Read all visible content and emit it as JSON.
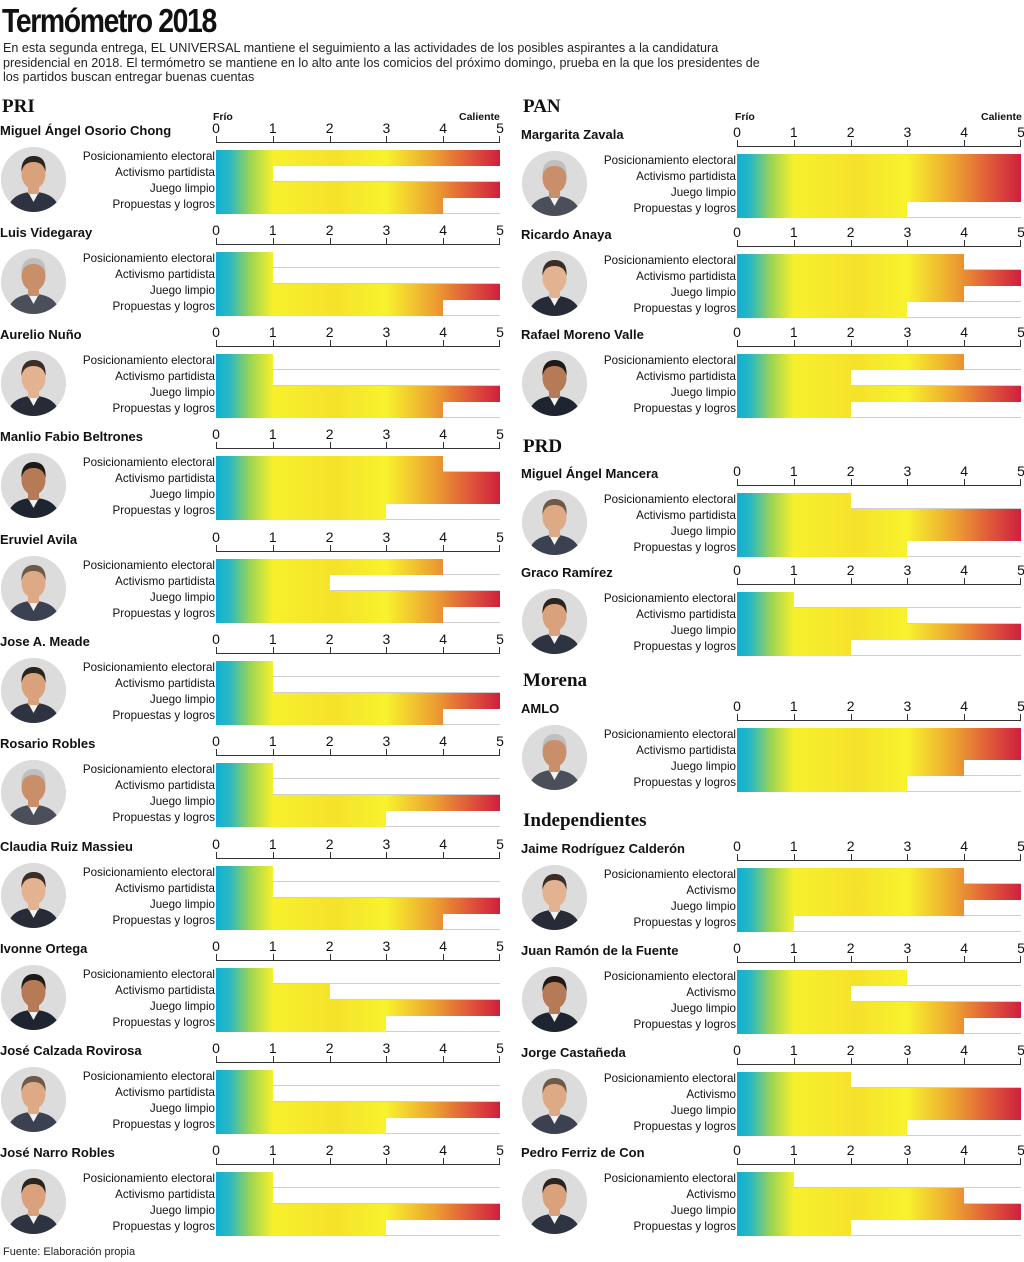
{
  "title": "Termómetro 2018",
  "intro": "En esta segunda entrega, EL UNIVERSAL mantiene el seguimiento a las actividades de los posibles aspirantes a la candidatura presidencial en 2018. El termómetro se mantiene en lo alto ante los comicios del próximo domingo, prueba en la que los presidentes de los partidos buscan entregar buenas cuentas",
  "source": "Fuente: Elaboración propia",
  "scale": {
    "cold": "Frío",
    "hot": "Caliente",
    "ticks": [
      "0",
      "1",
      "2",
      "3",
      "4",
      "5"
    ]
  },
  "colors": {
    "cold": "#0eafd4",
    "warm": "#f7f02c",
    "hot": "#cf1f3f"
  },
  "parties": [
    "PRI",
    "PAN",
    "PRD",
    "Morena",
    "Independientes"
  ],
  "chart_data": {
    "type": "bar",
    "orientation": "horizontal",
    "xlim": [
      0,
      5
    ],
    "title": "Termómetro 2018",
    "legend": [
      "Frío",
      "Caliente"
    ],
    "panels": [
      {
        "party": "PRI",
        "name": "Miguel Ángel Osorio Chong",
        "categories": [
          "Posicionamiento electoral",
          "Activismo partidista",
          "Juego limpio",
          "Propuestas y logros"
        ],
        "values": [
          5,
          1,
          5,
          4
        ]
      },
      {
        "party": "PRI",
        "name": "Luis Videgaray",
        "categories": [
          "Posicionamiento electoral",
          "Activismo partidista",
          "Juego limpio",
          "Propuestas y logros"
        ],
        "values": [
          1,
          1,
          5,
          4
        ]
      },
      {
        "party": "PRI",
        "name": "Aurelio Nuño",
        "categories": [
          "Posicionamiento electoral",
          "Activismo partidista",
          "Juego limpio",
          "Propuestas y logros"
        ],
        "values": [
          1,
          1,
          5,
          4
        ]
      },
      {
        "party": "PRI",
        "name": "Manlio Fabio Beltrones",
        "categories": [
          "Posicionamiento electoral",
          "Activismo partidista",
          "Juego limpio",
          "Propuestas y logros"
        ],
        "values": [
          4,
          5,
          5,
          3
        ]
      },
      {
        "party": "PRI",
        "name": "Eruviel Avila",
        "categories": [
          "Posicionamiento electoral",
          "Activismo partidista",
          "Juego limpio",
          "Propuestas y logros"
        ],
        "values": [
          4,
          2,
          5,
          4
        ]
      },
      {
        "party": "PRI",
        "name": "Jose A. Meade",
        "categories": [
          "Posicionamiento electoral",
          "Activismo partidista",
          "Juego limpio",
          "Propuestas y logros"
        ],
        "values": [
          1,
          1,
          5,
          4
        ]
      },
      {
        "party": "PRI",
        "name": "Rosario Robles",
        "categories": [
          "Posicionamiento electoral",
          "Activismo partidista",
          "Juego limpio",
          "Propuestas y logros"
        ],
        "values": [
          1,
          1,
          5,
          3
        ]
      },
      {
        "party": "PRI",
        "name": "Claudia Ruiz Massieu",
        "categories": [
          "Posicionamiento electoral",
          "Activismo partidista",
          "Juego limpio",
          "Propuestas y logros"
        ],
        "values": [
          1,
          1,
          5,
          4
        ]
      },
      {
        "party": "PRI",
        "name": "Ivonne Ortega",
        "categories": [
          "Posicionamiento electoral",
          "Activismo partidista",
          "Juego limpio",
          "Propuestas y logros"
        ],
        "values": [
          1,
          2,
          5,
          3
        ]
      },
      {
        "party": "PRI",
        "name": "José Calzada Rovirosa",
        "categories": [
          "Posicionamiento electoral",
          "Activismo partidista",
          "Juego limpio",
          "Propuestas y logros"
        ],
        "values": [
          1,
          1,
          5,
          3
        ]
      },
      {
        "party": "PRI",
        "name": "José Narro Robles",
        "categories": [
          "Posicionamiento electoral",
          "Activismo partidista",
          "Juego limpio",
          "Propuestas y logros"
        ],
        "values": [
          1,
          1,
          5,
          3
        ]
      },
      {
        "party": "PAN",
        "name": "Margarita Zavala",
        "categories": [
          "Posicionamiento electoral",
          "Activismo partidista",
          "Juego limpio",
          "Propuestas y logros"
        ],
        "values": [
          5,
          5,
          5,
          3
        ]
      },
      {
        "party": "PAN",
        "name": "Ricardo Anaya",
        "categories": [
          "Posicionamiento electoral",
          "Activismo partidista",
          "Juego limpio",
          "Propuestas y logros"
        ],
        "values": [
          4,
          5,
          4,
          3
        ]
      },
      {
        "party": "PAN",
        "name": "Rafael Moreno Valle",
        "categories": [
          "Posicionamiento electoral",
          "Activismo partidista",
          "Juego limpio",
          "Propuestas y logros"
        ],
        "values": [
          4,
          2,
          5,
          2
        ]
      },
      {
        "party": "PRD",
        "name": "Miguel Ángel Mancera",
        "categories": [
          "Posicionamiento electoral",
          "Activismo partidista",
          "Juego limpio",
          "Propuestas y logros"
        ],
        "values": [
          2,
          5,
          5,
          3
        ]
      },
      {
        "party": "PRD",
        "name": "Graco Ramírez",
        "categories": [
          "Posicionamiento electoral",
          "Activismo partidista",
          "Juego limpio",
          "Propuestas y logros"
        ],
        "values": [
          1,
          3,
          5,
          2
        ]
      },
      {
        "party": "Morena",
        "name": "AMLO",
        "categories": [
          "Posicionamiento electoral",
          "Activismo partidista",
          "Juego limpio",
          "Propuestas y logros"
        ],
        "values": [
          5,
          5,
          4,
          3
        ]
      },
      {
        "party": "Independientes",
        "name": "Jaime Rodríguez Calderón",
        "categories": [
          "Posicionamiento electoral",
          "Activismo",
          "Juego limpio",
          "Propuestas y logros"
        ],
        "values": [
          4,
          5,
          4,
          1
        ]
      },
      {
        "party": "Independientes",
        "name": "Juan Ramón de la Fuente",
        "categories": [
          "Posicionamiento electoral",
          "Activismo",
          "Juego limpio",
          "Propuestas y logros"
        ],
        "values": [
          3,
          2,
          5,
          4
        ]
      },
      {
        "party": "Independientes",
        "name": "Jorge Castañeda",
        "categories": [
          "Posicionamiento electoral",
          "Activismo",
          "Juego limpio",
          "Propuestas y logros"
        ],
        "values": [
          2,
          5,
          5,
          3
        ]
      },
      {
        "party": "Independientes",
        "name": "Pedro Ferriz de Con",
        "categories": [
          "Posicionamiento electoral",
          "Activismo",
          "Juego limpio",
          "Propuestas y logros"
        ],
        "values": [
          1,
          4,
          5,
          2
        ]
      }
    ]
  }
}
